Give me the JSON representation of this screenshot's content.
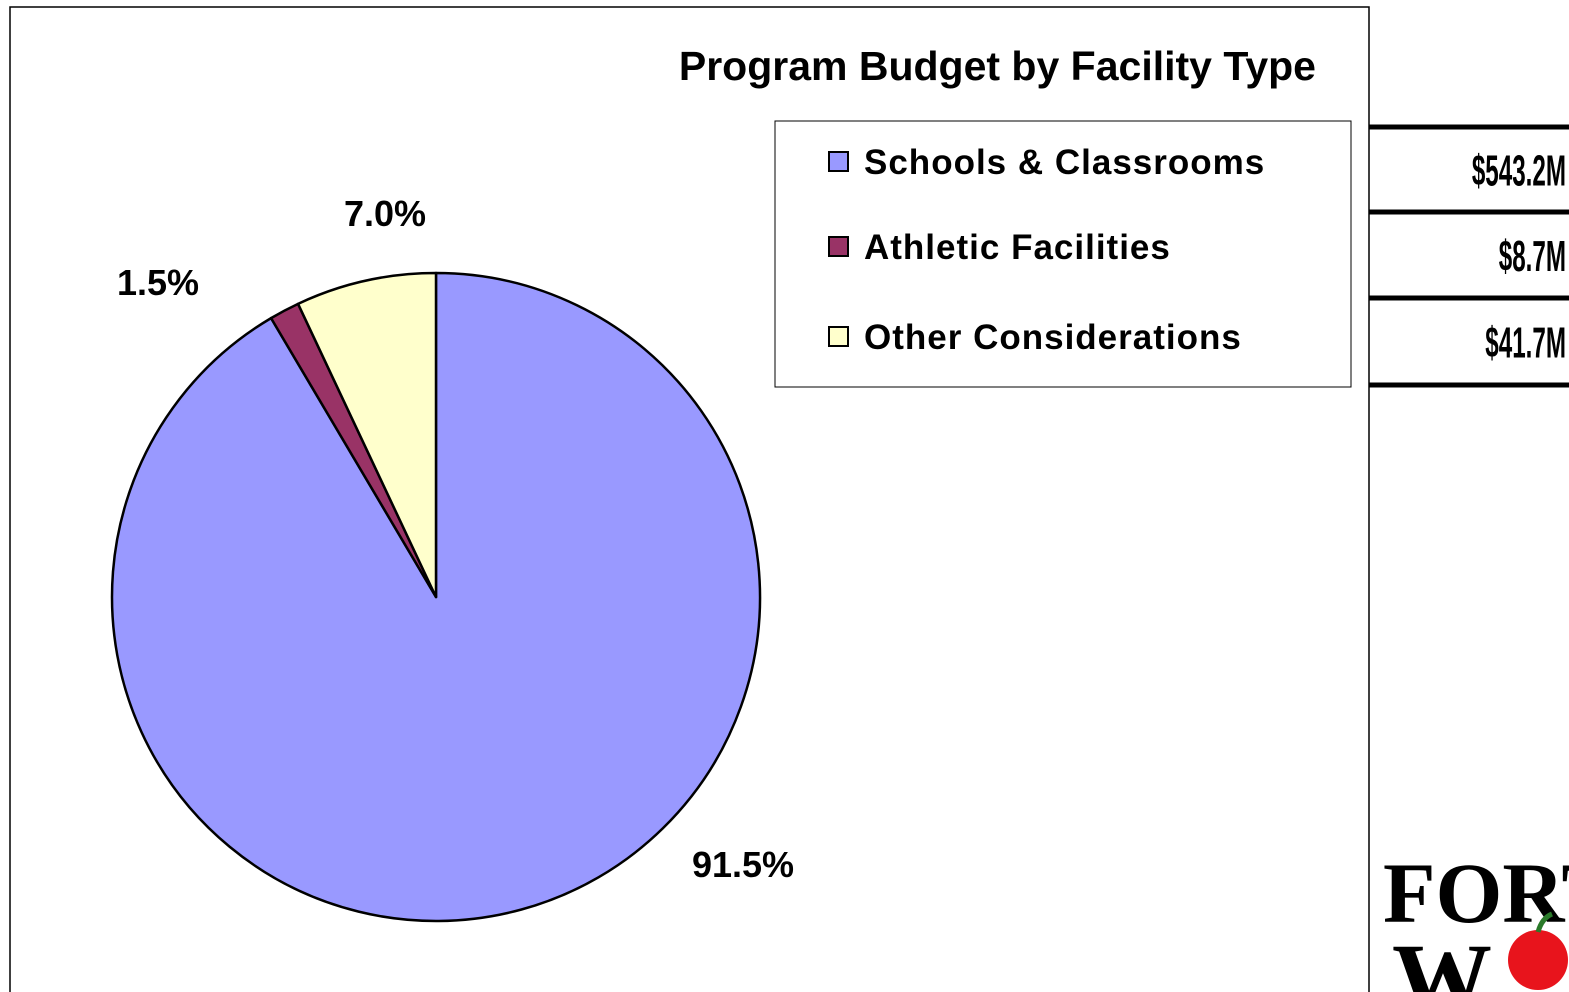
{
  "chart_data": {
    "type": "pie",
    "title": "Program Budget by Facility Type",
    "categories": [
      "Schools & Classrooms",
      "Athletic Facilities",
      "Other Considerations"
    ],
    "values": [
      91.5,
      1.5,
      7.0
    ],
    "value_labels": [
      "91.5%",
      "1.5%",
      "7.0%"
    ],
    "colors": [
      "#9999ff",
      "#993366",
      "#ffffcc"
    ],
    "legend": "top-right"
  },
  "table": {
    "rows": [
      "$543.2M",
      "$8.7M",
      "$41.7M"
    ]
  },
  "logo": {
    "lines": [
      "FORT",
      "W"
    ]
  }
}
